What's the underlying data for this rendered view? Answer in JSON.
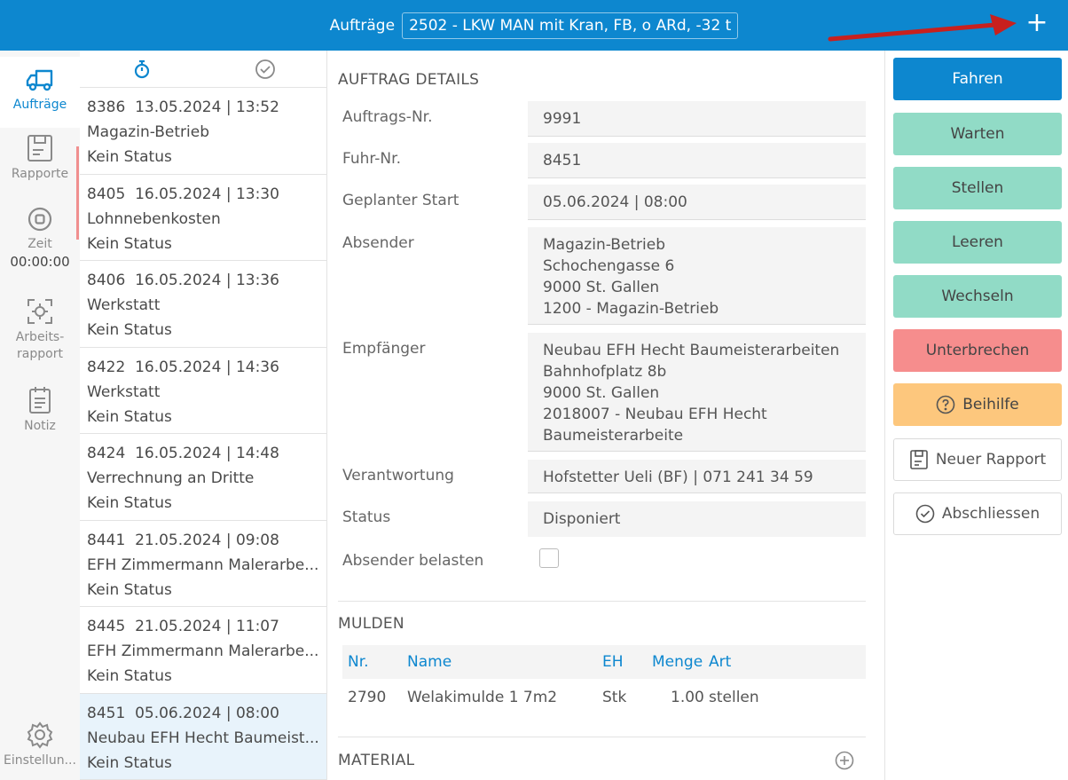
{
  "header": {
    "label": "Aufträge",
    "vehicle": "2502 - LKW MAN mit Kran, FB, o ARd, -32 t",
    "add_symbol": "+"
  },
  "nav": {
    "items": [
      {
        "label": "Aufträge",
        "icon": "truck-icon",
        "active": true
      },
      {
        "label": "Rapporte",
        "icon": "clipboard-icon"
      },
      {
        "label": "Zeit",
        "icon": "stop-icon",
        "timer": "00:00:00"
      },
      {
        "label": "Arbeits-",
        "label2": "rapport",
        "icon": "focus-icon"
      },
      {
        "label": "Notiz",
        "icon": "notepad-icon"
      },
      {
        "label": "Einstellun...",
        "icon": "gear-icon"
      }
    ]
  },
  "orders": [
    {
      "no": "8386",
      "date": "13.05.2024 | 13:52",
      "title": "Magazin-Betrieb",
      "status": "Kein Status"
    },
    {
      "no": "8405",
      "date": "16.05.2024 | 13:30",
      "title": "Lohnnebenkosten",
      "status": "Kein Status"
    },
    {
      "no": "8406",
      "date": "16.05.2024 | 13:36",
      "title": "Werkstatt",
      "status": "Kein Status"
    },
    {
      "no": "8422",
      "date": "16.05.2024 | 14:36",
      "title": "Werkstatt",
      "status": "Kein Status"
    },
    {
      "no": "8424",
      "date": "16.05.2024 | 14:48",
      "title": "Verrechnung an Dritte",
      "status": "Kein Status"
    },
    {
      "no": "8441",
      "date": "21.05.2024 | 09:08",
      "title": "EFH Zimmermann Malerarbe...",
      "status": "Kein Status"
    },
    {
      "no": "8445",
      "date": "21.05.2024 | 11:07",
      "title": "EFH Zimmermann Malerarbe...",
      "status": "Kein Status"
    },
    {
      "no": "8451",
      "date": "05.06.2024 | 08:00",
      "title": "Neubau EFH Hecht Baumeist...",
      "status": "Kein Status"
    }
  ],
  "details": {
    "section_title": "AUFTRAG DETAILS",
    "fields": {
      "auftrags_nr": {
        "label": "Auftrags-Nr.",
        "value": "9991"
      },
      "fuhr_nr": {
        "label": "Fuhr-Nr.",
        "value": "8451"
      },
      "start": {
        "label": "Geplanter Start",
        "value": "05.06.2024 | 08:00"
      },
      "absender": {
        "label": "Absender",
        "lines": [
          "Magazin-Betrieb",
          "Schochengasse 6",
          "9000 St. Gallen",
          "1200 - Magazin-Betrieb"
        ]
      },
      "empfaenger": {
        "label": "Empfänger",
        "lines": [
          "Neubau EFH Hecht Baumeisterarbeiten",
          "Bahnhofplatz 8b",
          "9000 St. Gallen",
          "2018007 - Neubau EFH Hecht",
          "Baumeisterarbeite"
        ]
      },
      "verantwortung": {
        "label": "Verantwortung",
        "value": "Hofstetter Ueli (BF) | 071 241 34 59"
      },
      "status": {
        "label": "Status",
        "value": "Disponiert"
      },
      "belasten": {
        "label": "Absender belasten"
      }
    }
  },
  "mulden": {
    "title": "MULDEN",
    "headers": [
      "Nr.",
      "Name",
      "EH",
      "Menge",
      "Art"
    ],
    "rows": [
      [
        "2790",
        "Welakimulde 1 7m2",
        "Stk",
        "1.00",
        "stellen"
      ]
    ]
  },
  "material": {
    "title": "MATERIAL"
  },
  "actions": [
    {
      "label": "Fahren",
      "style": "primary"
    },
    {
      "label": "Warten",
      "style": "teal"
    },
    {
      "label": "Stellen",
      "style": "teal"
    },
    {
      "label": "Leeren",
      "style": "teal"
    },
    {
      "label": "Wechseln",
      "style": "teal"
    },
    {
      "label": "Unterbrechen",
      "style": "red"
    },
    {
      "label": "Beihilfe",
      "style": "amber",
      "icon": "help-circle-icon"
    },
    {
      "label": "Neuer Rapport",
      "style": "outline",
      "icon": "clipboard-icon"
    },
    {
      "label": "Abschliessen",
      "style": "outline",
      "icon": "check-circle-icon"
    }
  ],
  "colors": {
    "primary": "#0d87cf",
    "teal": "#91dbc6",
    "red": "#f68d8d",
    "amber": "#fdc77d",
    "selected": "#e8f3fb",
    "annotation_arrow": "#c8201e"
  }
}
